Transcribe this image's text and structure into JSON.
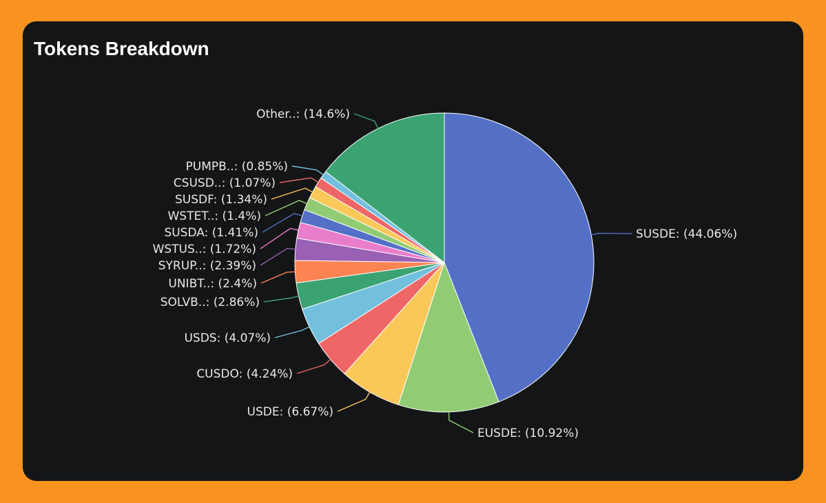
{
  "page": {
    "background": "#F7931E",
    "card_background": "#141516",
    "title": "Tokens Breakdown"
  },
  "chart_data": {
    "type": "pie",
    "title": "Tokens Breakdown",
    "start_angle_deg": 0,
    "direction": "clockwise",
    "slices": [
      {
        "label": "SUSDE: (44.06%)",
        "value": 44.06,
        "color": "#5470C6"
      },
      {
        "label": "EUSDE: (10.92%)",
        "value": 10.92,
        "color": "#91CC75"
      },
      {
        "label": "USDE: (6.67%)",
        "value": 6.67,
        "color": "#FAC858"
      },
      {
        "label": "CUSDO: (4.24%)",
        "value": 4.24,
        "color": "#EE6666"
      },
      {
        "label": "USDS: (4.07%)",
        "value": 4.07,
        "color": "#73C0DE"
      },
      {
        "label": "SOLVB..: (2.86%)",
        "value": 2.86,
        "color": "#3BA272"
      },
      {
        "label": "UNIBT..: (2.4%)",
        "value": 2.4,
        "color": "#FC8452"
      },
      {
        "label": "SYRUP..: (2.39%)",
        "value": 2.39,
        "color": "#9A60B4"
      },
      {
        "label": "WSTUS..: (1.72%)",
        "value": 1.72,
        "color": "#EA7CCC"
      },
      {
        "label": "SUSDA: (1.41%)",
        "value": 1.41,
        "color": "#5470C6"
      },
      {
        "label": "WSTET..: (1.4%)",
        "value": 1.4,
        "color": "#91CC75"
      },
      {
        "label": "SUSDF: (1.34%)",
        "value": 1.34,
        "color": "#FAC858"
      },
      {
        "label": "CSUSD..: (1.07%)",
        "value": 1.07,
        "color": "#EE6666"
      },
      {
        "label": "PUMPB..: (0.85%)",
        "value": 0.85,
        "color": "#73C0DE"
      },
      {
        "label": "Other..: (14.6%)",
        "value": 14.6,
        "color": "#3BA272"
      }
    ]
  }
}
